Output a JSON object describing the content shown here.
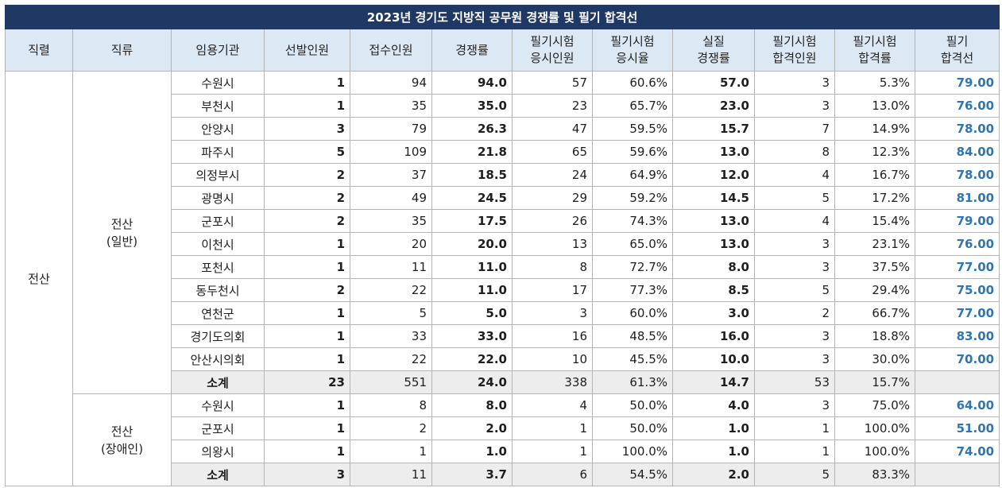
{
  "title": "2023년 경기도 지방직 공무원 경쟁률 및 필기 합격선",
  "headers": {
    "jikryeol": "직렬",
    "jikryu": "직류",
    "agency": "임용기관",
    "selected": "선발인원",
    "applied": "접수인원",
    "ratio": "경쟁률",
    "taken_l1": "필기시험",
    "taken_l2": "응시인원",
    "take_rate_l1": "필기시험",
    "take_rate_l2": "응시율",
    "real_ratio_l1": "실질",
    "real_ratio_l2": "경쟁률",
    "passed_l1": "필기시험",
    "passed_l2": "합격인원",
    "pass_rate_l1": "필기시험",
    "pass_rate_l2": "합격률",
    "cutline_l1": "필기",
    "cutline_l2": "합격선"
  },
  "jikryeol": "전산",
  "groups": [
    {
      "name_l1": "전산",
      "name_l2": "(일반)",
      "rows": [
        {
          "agency": "수원시",
          "selected": "1",
          "applied": "94",
          "ratio": "94.0",
          "taken": "57",
          "take_rate": "60.6%",
          "real_ratio": "57.0",
          "passed": "3",
          "pass_rate": "5.3%",
          "cutline": "79.00"
        },
        {
          "agency": "부천시",
          "selected": "1",
          "applied": "35",
          "ratio": "35.0",
          "taken": "23",
          "take_rate": "65.7%",
          "real_ratio": "23.0",
          "passed": "3",
          "pass_rate": "13.0%",
          "cutline": "76.00"
        },
        {
          "agency": "안양시",
          "selected": "3",
          "applied": "79",
          "ratio": "26.3",
          "taken": "47",
          "take_rate": "59.5%",
          "real_ratio": "15.7",
          "passed": "7",
          "pass_rate": "14.9%",
          "cutline": "78.00"
        },
        {
          "agency": "파주시",
          "selected": "5",
          "applied": "109",
          "ratio": "21.8",
          "taken": "65",
          "take_rate": "59.6%",
          "real_ratio": "13.0",
          "passed": "8",
          "pass_rate": "12.3%",
          "cutline": "84.00"
        },
        {
          "agency": "의정부시",
          "selected": "2",
          "applied": "37",
          "ratio": "18.5",
          "taken": "24",
          "take_rate": "64.9%",
          "real_ratio": "12.0",
          "passed": "4",
          "pass_rate": "16.7%",
          "cutline": "78.00"
        },
        {
          "agency": "광명시",
          "selected": "2",
          "applied": "49",
          "ratio": "24.5",
          "taken": "29",
          "take_rate": "59.2%",
          "real_ratio": "14.5",
          "passed": "5",
          "pass_rate": "17.2%",
          "cutline": "81.00"
        },
        {
          "agency": "군포시",
          "selected": "2",
          "applied": "35",
          "ratio": "17.5",
          "taken": "26",
          "take_rate": "74.3%",
          "real_ratio": "13.0",
          "passed": "4",
          "pass_rate": "15.4%",
          "cutline": "79.00"
        },
        {
          "agency": "이천시",
          "selected": "1",
          "applied": "20",
          "ratio": "20.0",
          "taken": "13",
          "take_rate": "65.0%",
          "real_ratio": "13.0",
          "passed": "3",
          "pass_rate": "23.1%",
          "cutline": "76.00"
        },
        {
          "agency": "포천시",
          "selected": "1",
          "applied": "11",
          "ratio": "11.0",
          "taken": "8",
          "take_rate": "72.7%",
          "real_ratio": "8.0",
          "passed": "3",
          "pass_rate": "37.5%",
          "cutline": "77.00"
        },
        {
          "agency": "동두천시",
          "selected": "2",
          "applied": "22",
          "ratio": "11.0",
          "taken": "17",
          "take_rate": "77.3%",
          "real_ratio": "8.5",
          "passed": "5",
          "pass_rate": "29.4%",
          "cutline": "75.00"
        },
        {
          "agency": "연천군",
          "selected": "1",
          "applied": "5",
          "ratio": "5.0",
          "taken": "3",
          "take_rate": "60.0%",
          "real_ratio": "3.0",
          "passed": "2",
          "pass_rate": "66.7%",
          "cutline": "77.00"
        },
        {
          "agency": "경기도의회",
          "selected": "1",
          "applied": "33",
          "ratio": "33.0",
          "taken": "16",
          "take_rate": "48.5%",
          "real_ratio": "16.0",
          "passed": "3",
          "pass_rate": "18.8%",
          "cutline": "83.00"
        },
        {
          "agency": "안산시의회",
          "selected": "1",
          "applied": "22",
          "ratio": "22.0",
          "taken": "10",
          "take_rate": "45.5%",
          "real_ratio": "10.0",
          "passed": "3",
          "pass_rate": "30.0%",
          "cutline": "70.00"
        }
      ],
      "subtotal": {
        "label": "소계",
        "selected": "23",
        "applied": "551",
        "ratio": "24.0",
        "taken": "338",
        "take_rate": "61.3%",
        "real_ratio": "14.7",
        "passed": "53",
        "pass_rate": "15.7%",
        "cutline": ""
      }
    },
    {
      "name_l1": "전산",
      "name_l2": "(장애인)",
      "rows": [
        {
          "agency": "수원시",
          "selected": "1",
          "applied": "8",
          "ratio": "8.0",
          "taken": "4",
          "take_rate": "50.0%",
          "real_ratio": "4.0",
          "passed": "3",
          "pass_rate": "75.0%",
          "cutline": "64.00"
        },
        {
          "agency": "군포시",
          "selected": "1",
          "applied": "2",
          "ratio": "2.0",
          "taken": "1",
          "take_rate": "50.0%",
          "real_ratio": "1.0",
          "passed": "1",
          "pass_rate": "100.0%",
          "cutline": "51.00"
        },
        {
          "agency": "의왕시",
          "selected": "1",
          "applied": "1",
          "ratio": "1.0",
          "taken": "1",
          "take_rate": "100.0%",
          "real_ratio": "1.0",
          "passed": "1",
          "pass_rate": "100.0%",
          "cutline": "74.00"
        }
      ],
      "subtotal": {
        "label": "소계",
        "selected": "3",
        "applied": "11",
        "ratio": "3.7",
        "taken": "6",
        "take_rate": "54.5%",
        "real_ratio": "2.0",
        "passed": "5",
        "pass_rate": "83.3%",
        "cutline": ""
      }
    }
  ]
}
